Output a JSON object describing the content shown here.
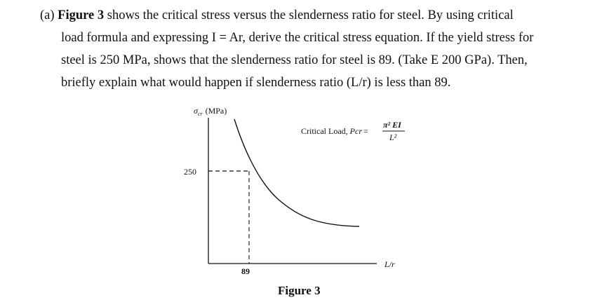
{
  "question": {
    "line1_prefix": "(a) ",
    "line1_bold": "Figure 3",
    "line1_rest": " shows the critical stress versus the slenderness ratio for steel. By using critical",
    "line2": "load formula and expressing I = Ar, derive the critical stress equation. If the yield stress for",
    "line3": "steel is 250 MPa, shows that the slenderness ratio for steel is 89. (Take E 200 GPa). Then,",
    "line4": "briefly explain what would happen if slenderness ratio (L/r) is less than 89."
  },
  "figure": {
    "y_axis_symbol": "σ",
    "y_axis_subscript": "cr",
    "y_axis_unit": "(MPa)",
    "x_axis_label": "L/r",
    "y_tick_label": "250",
    "x_tick_label": "89",
    "formula_label": "Critical Load, ",
    "formula_var": "Pcr",
    "formula_numerator": "π² EI",
    "formula_denominator": "L²",
    "caption": "Figure 3",
    "yield_stress": 250,
    "slenderness_ratio": 89
  }
}
